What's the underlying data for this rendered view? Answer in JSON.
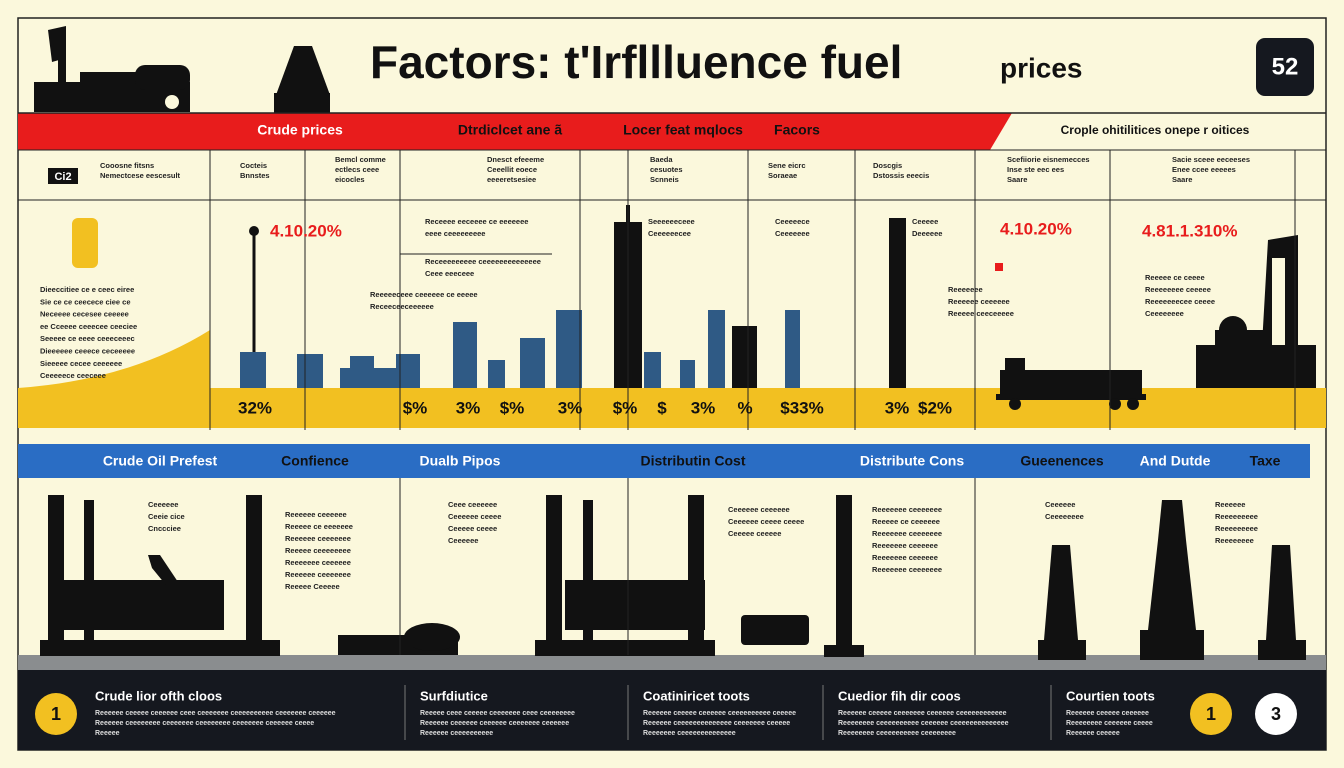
{
  "header": {
    "title": "Factors: t'Irfllluence fuel",
    "subtitle": "prices",
    "badge": "52"
  },
  "red_band": {
    "labels": [
      "Crude prices",
      "Dtrdiclcet ane ã",
      "Locer feat mqlocs",
      "Facors"
    ],
    "side_note": "Crople ohitilitices onepe r oitices"
  },
  "column_headers": [
    [
      "Ci2"
    ],
    [
      "Cooosne fitsns",
      "Nemectcese eescesult"
    ],
    [
      "Cocteis",
      "Bnnstes"
    ],
    [
      "Bemcl comme",
      "ectlecs ceee",
      "eicocles"
    ],
    [
      "Dnesct efeeeme",
      "Ceeellit eoece",
      "eeeeretsesiee"
    ],
    [
      "Baeda",
      "cesuotes",
      "Scnneis"
    ],
    [
      "Sene eicrc",
      "Soraeae"
    ],
    [
      "Doscgis",
      "Dstossis eeecis"
    ],
    [
      "Scefiiorie eisnemecces",
      "Inse ste eec ees",
      "Saare"
    ],
    [
      "Sacie sceee eeceeses",
      "Enee ccee eeeees",
      "Saare"
    ]
  ],
  "chart": {
    "callouts": [
      "4.10.20%",
      "4.10.20%",
      "4.81.1.310%"
    ],
    "percent_labels": [
      "32%",
      "$%",
      "3%",
      "$%",
      "3%",
      "$%",
      "$",
      "3%",
      "%",
      "$33%",
      "3%",
      "$2%"
    ],
    "left_note": [
      "Dieeccitiee ce e ceec eiree",
      "Sie ce ce ceecece ciee ce",
      "Neceeee cecesee ceeeee",
      "ee Cceeee ceeecee ceeciee",
      "Seeeee ce eeee ceeeceeec",
      "Dieeeeee ceeece ceceeeee",
      "Sieeeee cecee ceeeeee",
      "Ceeeeece ceeceee"
    ],
    "notes": [
      [
        "Receeee eeceeee ce eeeeeee",
        "eeee ceeeeeeeee"
      ],
      [
        "Receeeeeeeee ceeeeeeeeeeeeee",
        "Ceee eeeceee"
      ],
      [
        "Reeeeeceee ceeeeee ce eeeee",
        "Receeceeceeeeee"
      ],
      [
        "Seeeeeeceee",
        "Ceeeeeecee"
      ],
      [
        "Ceeeeece",
        "Ceeeeeee"
      ],
      [
        "Ceeeee",
        "Deeeeee"
      ],
      [
        "Reeeeeee",
        "Reeeeee ceeeeee",
        "Reeeee ceeceeeee"
      ],
      [
        "Reeeee ce ceeee",
        "Reeeeeeee ceeeee",
        "Reeeeeeecee ceeee",
        "Ceeeeeeee"
      ]
    ]
  },
  "blue_band": {
    "labels": [
      "Crude Oil Prefest",
      "Confience",
      "Dualb Pipos",
      "Distributin Cost",
      "Distribute Cons",
      "Gueenences",
      "And Dutde",
      "Taxe"
    ]
  },
  "lower_notes": [
    [
      "Ceeeeee",
      "Ceeie cice",
      "Cnccciee"
    ],
    [
      "Reeeeee ceeeeee",
      "Reeeee ce eeeeeee",
      "Reeeeee ceeeeeee",
      "Reeeee ceeeeeeee",
      "Reeeeeee ceeeeee",
      "Reeeeee ceeeeeee",
      "Reeeee Ceeeee"
    ],
    [
      "Ceee ceeeeee",
      "Ceeeeee ceeee",
      "Ceeeee ceeee",
      "Ceeeeee"
    ],
    [
      "Ceeeeee ceeeeee",
      "Ceeeeee ceeee ceeee",
      "Ceeeee ceeeee"
    ],
    [
      "Reeeeeee ceeeeeee",
      "Reeeee ce ceeeeee",
      "Reeeeeee ceeeeeee",
      "Reeeeeee ceeeeee",
      "Reeeeeee ceeeeee",
      "Reeeeeee ceeeeeee"
    ],
    [
      "Ceeeeee",
      "Ceeeeeeee"
    ],
    [
      "Reeeeee",
      "Reeeeeeeee",
      "Reeeeeeeee",
      "Reeeeeeee"
    ]
  ],
  "footer": {
    "items": [
      {
        "number": "1",
        "title": "Crude lior ofth cloos",
        "text": [
          "Reeeeee ceeeee ceeeeee ceee ceeeeeee ceeeeeeeeee ceeeeeee ceeeeee",
          "Reeeeee ceeeeeeee ceeeeeee ceeeeeeee ceeeeeee ceeeeee ceeee",
          "Reeeee"
        ]
      },
      {
        "title": "Surfdiutice",
        "text": [
          "Reeeee ceee ceeeee ceeeeeee ceee ceeeeeeee",
          "Reeeeee ceeeeee ceeeeee ceeeeeee ceeeeee",
          "Reeeeee ceeeeeeeeee"
        ]
      },
      {
        "title": "Coatiniricet toots",
        "text": [
          "Reeeeee ceeeee ceeeeee ceeeeeeeeee ceeeee",
          "Reeeeee ceeeeeeeeeeeeee ceeeeeee ceeeee",
          "Reeeeeee ceeeeeeeeeeeeee"
        ]
      },
      {
        "title": "Cuedior fih dir coos",
        "text": [
          "Reeeeee ceeeee ceeeeeee ceeeeee ceeeeeeeeeeee",
          "Reeeeeeee ceeeeeeeeee ceeeeee ceeeeeeeeeeeeee",
          "Reeeeeeee ceeeeeeeeee ceeeeeeee"
        ]
      },
      {
        "title": "Courtien toots",
        "text": [
          "Reeeeee ceeeee ceeeeee",
          "Reeeeeeee ceeeeee ceeee",
          "Reeeeee ceeeee"
        ]
      }
    ],
    "badges": [
      "1",
      "3"
    ]
  }
}
